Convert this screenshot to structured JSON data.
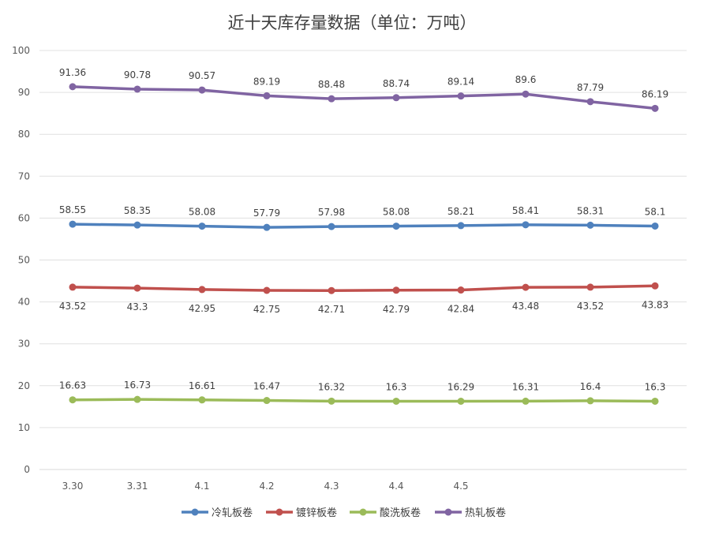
{
  "chart_data": {
    "type": "line",
    "title": "近十天库存量数据（单位：万吨）",
    "xlabel": "",
    "ylabel": "",
    "categories": [
      "3.30",
      "3.31",
      "4.1",
      "4.2",
      "4.3",
      "4.4",
      "4.5",
      "",
      "",
      ""
    ],
    "ylim": [
      0,
      100
    ],
    "yticks": [
      0,
      10,
      20,
      30,
      40,
      50,
      60,
      70,
      80,
      90,
      100
    ],
    "grid": true,
    "legend": "bottom",
    "series": [
      {
        "name": "冷轧板卷",
        "color": "#4f81bd",
        "label_pos": "above",
        "values": [
          58.55,
          58.35,
          58.08,
          57.79,
          57.98,
          58.08,
          58.21,
          58.41,
          58.31,
          58.1
        ]
      },
      {
        "name": "镀锌板卷",
        "color": "#c0504d",
        "label_pos": "below",
        "values": [
          43.52,
          43.3,
          42.95,
          42.75,
          42.71,
          42.79,
          42.84,
          43.48,
          43.52,
          43.83
        ]
      },
      {
        "name": "酸洗板卷",
        "color": "#9bbb59",
        "label_pos": "above",
        "values": [
          16.63,
          16.73,
          16.61,
          16.47,
          16.32,
          16.3,
          16.29,
          16.31,
          16.4,
          16.3
        ]
      },
      {
        "name": "热轧板卷",
        "color": "#8064a2",
        "label_pos": "above",
        "values": [
          91.36,
          90.78,
          90.57,
          89.19,
          88.48,
          88.74,
          89.14,
          89.6,
          87.79,
          86.19
        ]
      }
    ]
  }
}
